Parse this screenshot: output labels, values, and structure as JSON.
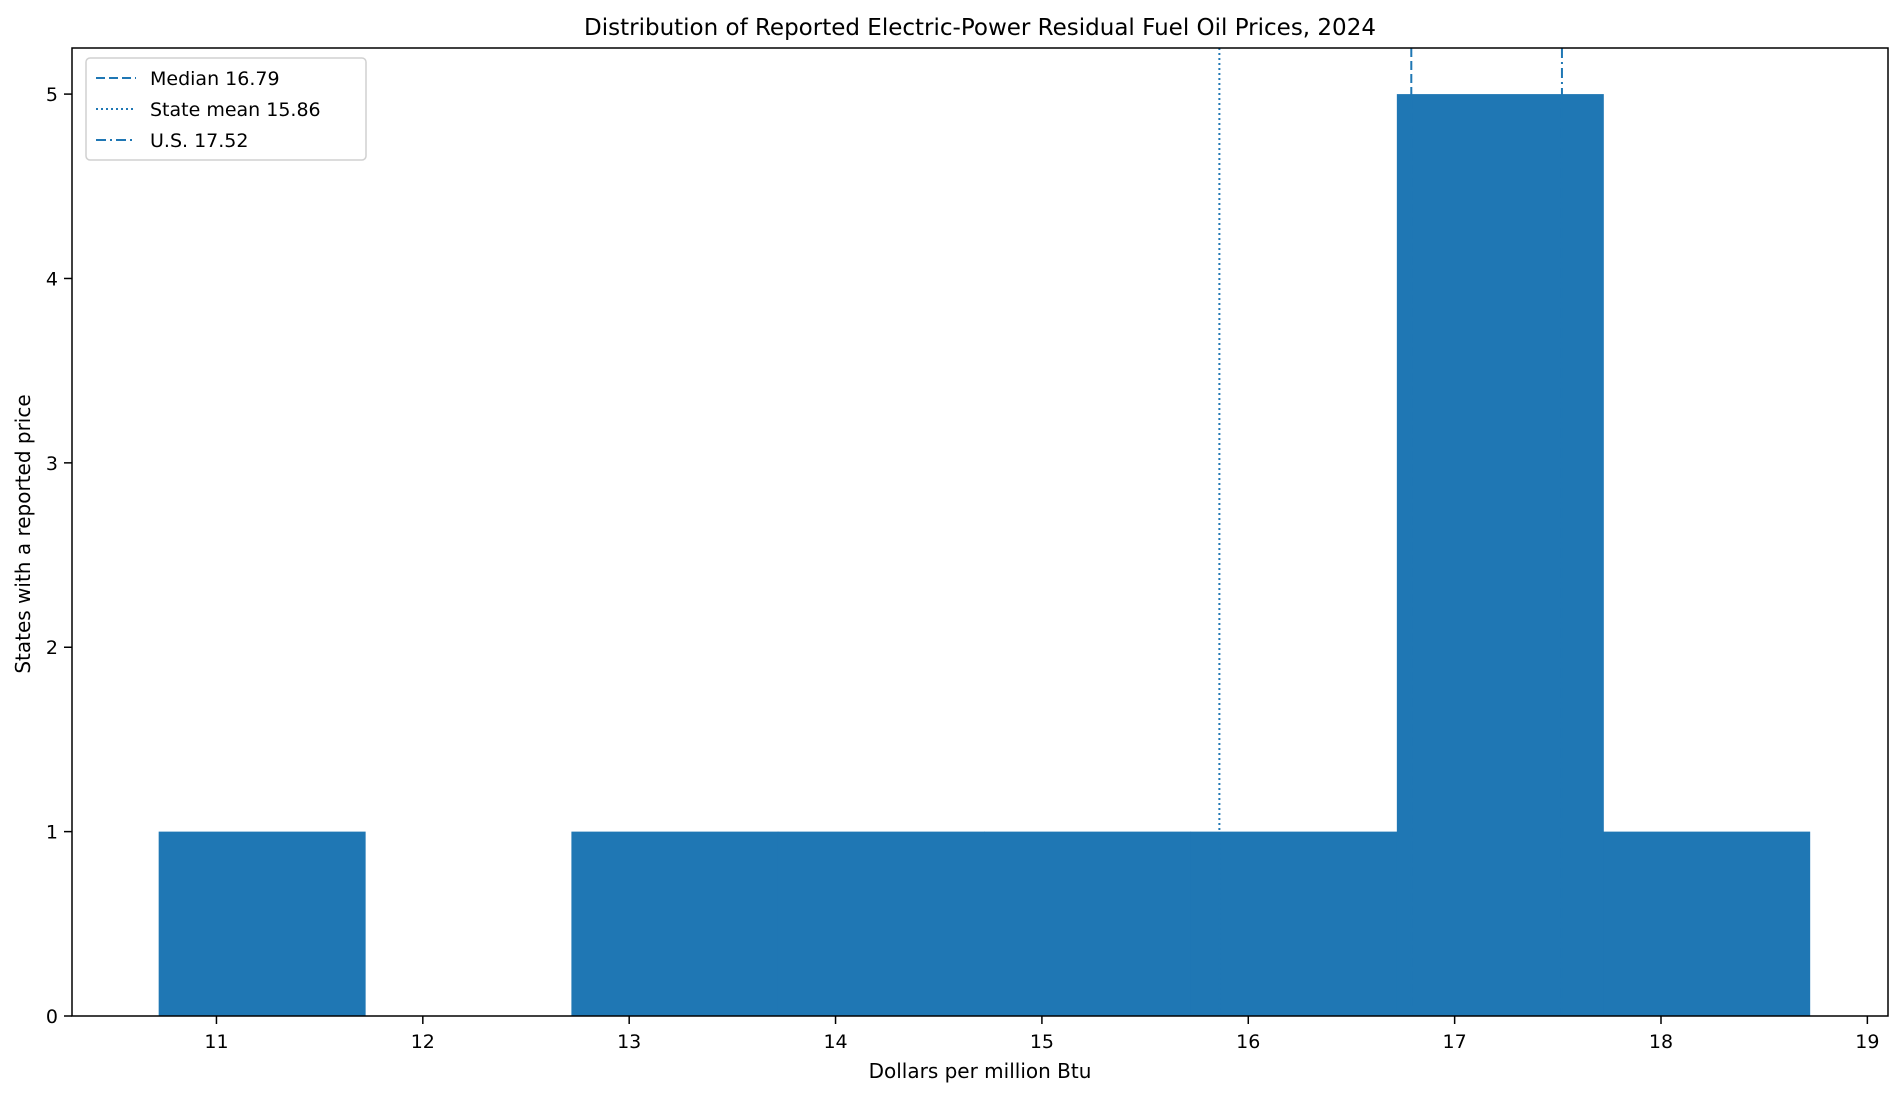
{
  "chart_data": {
    "type": "bar",
    "title": "Distribution of Reported Electric-Power Residual Fuel Oil Prices, 2024",
    "xlabel": "Dollars per million Btu",
    "ylabel": "States with a reported price",
    "xlim": [
      10.3,
      19.1
    ],
    "ylim": [
      0,
      5.25
    ],
    "x_ticks": [
      11,
      12,
      13,
      14,
      15,
      16,
      17,
      18,
      19
    ],
    "y_ticks": [
      0,
      1,
      2,
      3,
      4,
      5
    ],
    "grid": false,
    "bar_color": "#1f77b4",
    "bins": [
      {
        "start": 10.72,
        "end": 11.72,
        "count": 1
      },
      {
        "start": 11.72,
        "end": 12.72,
        "count": 0
      },
      {
        "start": 12.72,
        "end": 13.72,
        "count": 1
      },
      {
        "start": 13.72,
        "end": 14.72,
        "count": 1
      },
      {
        "start": 14.72,
        "end": 15.72,
        "count": 1
      },
      {
        "start": 15.72,
        "end": 16.72,
        "count": 1
      },
      {
        "start": 16.72,
        "end": 17.72,
        "count": 5
      },
      {
        "start": 17.72,
        "end": 18.72,
        "count": 1
      }
    ],
    "reference_lines": [
      {
        "label": "Median 16.79",
        "value": 16.79,
        "style": "dashed",
        "color": "#1f77b4"
      },
      {
        "label": "State mean 15.86",
        "value": 15.86,
        "style": "dotted",
        "color": "#1f77b4"
      },
      {
        "label": "U.S. 17.52",
        "value": 17.52,
        "style": "dashdot",
        "color": "#1f77b4"
      }
    ],
    "legend_position": "top-left"
  }
}
